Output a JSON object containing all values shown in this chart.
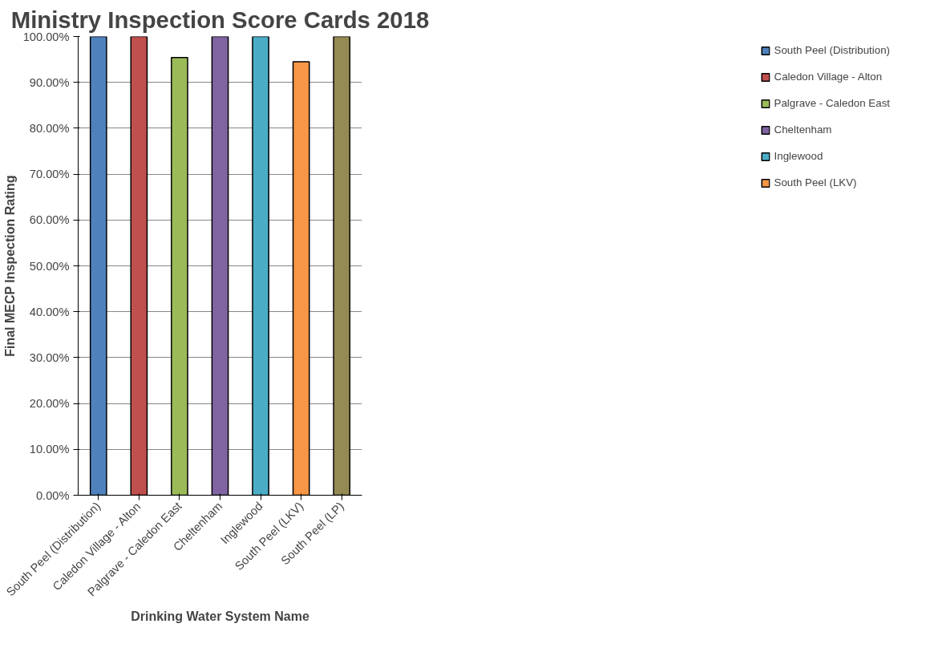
{
  "chart_data": {
    "type": "bar",
    "title": "Ministry Inspection Score Cards 2018",
    "xlabel": "Drinking Water System Name",
    "ylabel": "Final MECP Inspection Rating",
    "categories": [
      "South Peel (Distribution)",
      "Caledon Village - Alton",
      "Palgrave - Caledon East",
      "Cheltenham",
      "Inglewood",
      "South Peel (LKV)",
      "South Peel (LP)"
    ],
    "series": [
      {
        "name": "South Peel (Distribution)",
        "color": "#4f81bd",
        "values": [
          100,
          null,
          null,
          null,
          null,
          null,
          null
        ]
      },
      {
        "name": "Caledon Village - Alton",
        "color": "#c0504d",
        "values": [
          null,
          100,
          null,
          null,
          null,
          null,
          null
        ]
      },
      {
        "name": "Palgrave - Caledon East",
        "color": "#9bbb59",
        "values": [
          null,
          null,
          95.4,
          null,
          null,
          null,
          null
        ]
      },
      {
        "name": "Cheltenham",
        "color": "#8064a2",
        "values": [
          null,
          null,
          null,
          100,
          null,
          null,
          null
        ]
      },
      {
        "name": "Inglewood",
        "color": "#4bacc6",
        "values": [
          null,
          null,
          null,
          null,
          100,
          null,
          null
        ]
      },
      {
        "name": "South Peel (LKV)",
        "color": "#f79646",
        "values": [
          null,
          null,
          null,
          null,
          null,
          94.5,
          null
        ]
      },
      {
        "color": "#948a54",
        "values": [
          null,
          null,
          null,
          null,
          null,
          null,
          100
        ]
      }
    ],
    "ylim": [
      0,
      100
    ],
    "yticks": [
      {
        "value": 0,
        "label": "0.00%"
      },
      {
        "value": 10,
        "label": "10.00%"
      },
      {
        "value": 20,
        "label": "20.00%"
      },
      {
        "value": 30,
        "label": "30.00%"
      },
      {
        "value": 40,
        "label": "40.00%"
      },
      {
        "value": 50,
        "label": "50.00%"
      },
      {
        "value": 60,
        "label": "60.00%"
      },
      {
        "value": 70,
        "label": "70.00%"
      },
      {
        "value": 80,
        "label": "80.00%"
      },
      {
        "value": 90,
        "label": "90.00%"
      },
      {
        "value": 100,
        "label": "100.00%"
      }
    ],
    "grid": "y",
    "legend": "right"
  }
}
